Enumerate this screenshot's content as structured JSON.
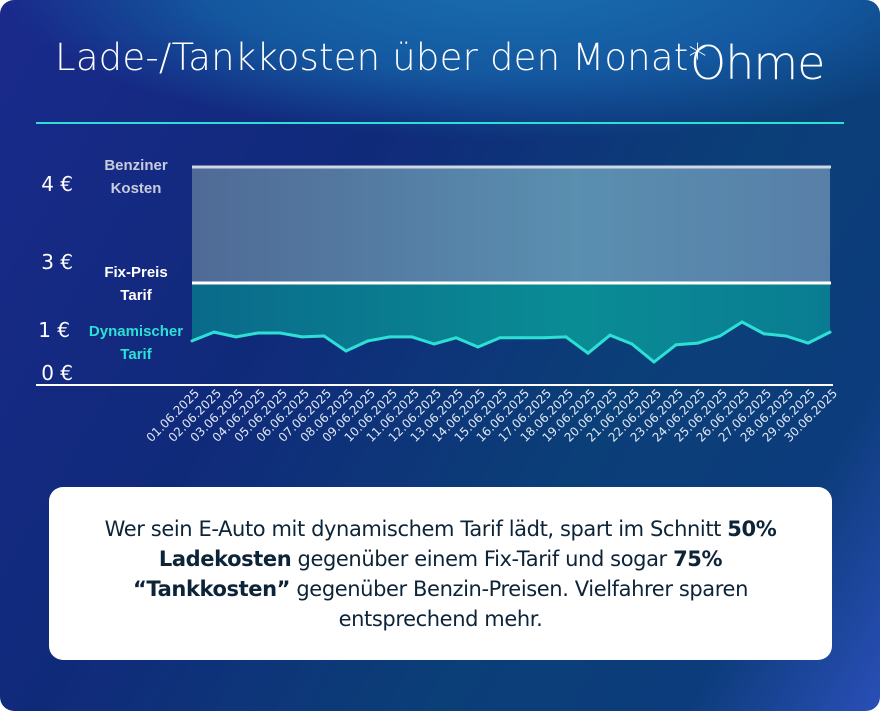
{
  "header": {
    "title": "Lade-/Tankkosten über den Monat*",
    "logo": "Ohme"
  },
  "chart_data": {
    "type": "line",
    "title": "Lade-/Tankkosten über den Monat*",
    "y_ticks": [
      "4 €",
      "3 €",
      "1 €",
      "0 €"
    ],
    "reference_levels": [
      {
        "name": "Benziner Kosten",
        "label_lines": [
          "Benziner",
          "Kosten"
        ],
        "value": 4,
        "color": "#d0d6e4"
      },
      {
        "name": "Fix-Preis Tarif",
        "label_lines": [
          "Fix-Preis",
          "Tarif"
        ],
        "value": 3,
        "color": "#ffffff"
      }
    ],
    "series": [
      {
        "name": "Dynamischer Tarif",
        "label_lines": [
          "Dynamischer",
          "Tarif"
        ],
        "color": "#2de0d6",
        "values": [
          0.73,
          0.93,
          0.82,
          0.91,
          0.91,
          0.82,
          0.84,
          0.5,
          0.73,
          0.82,
          0.82,
          0.66,
          0.8,
          0.59,
          0.8,
          0.8,
          0.8,
          0.82,
          0.45,
          0.86,
          0.66,
          0.25,
          0.64,
          0.68,
          0.84,
          1.16,
          0.89,
          0.84,
          0.68,
          0.93
        ]
      }
    ],
    "categories": [
      "01.06.2025",
      "02.06.2025",
      "03.06.2025",
      "04.06.2025",
      "05.06.2025",
      "06.06.2025",
      "07.06.2025",
      "08.06.2025",
      "09.06.2025",
      "10.06.2025",
      "11.06.2025",
      "12.06.2025",
      "13.06.2025",
      "14.06.2025",
      "15.06.2025",
      "16.06.2025",
      "17.06.2025",
      "18.06.2025",
      "19.06.2025",
      "20.06.2025",
      "21.06.2025",
      "22.06.2025",
      "23.06.2025",
      "24.06.2025",
      "25.06.2025",
      "26.06.2025",
      "27.06.2025",
      "28.06.2025",
      "29.06.2025",
      "30.06.2025"
    ],
    "ylabel": "",
    "xlabel": ""
  },
  "info": {
    "t1": "Wer sein E-Auto mit dynamischem Tarif lädt, spart im Schnitt ",
    "b1": "50% Ladekosten",
    "t2": " gegenüber einem Fix-Tarif und sogar ",
    "b2": "75% “Tankkosten”",
    "t3": " gegenüber Benzin-Preisen. Vielfahrer sparen entsprechend mehr."
  }
}
